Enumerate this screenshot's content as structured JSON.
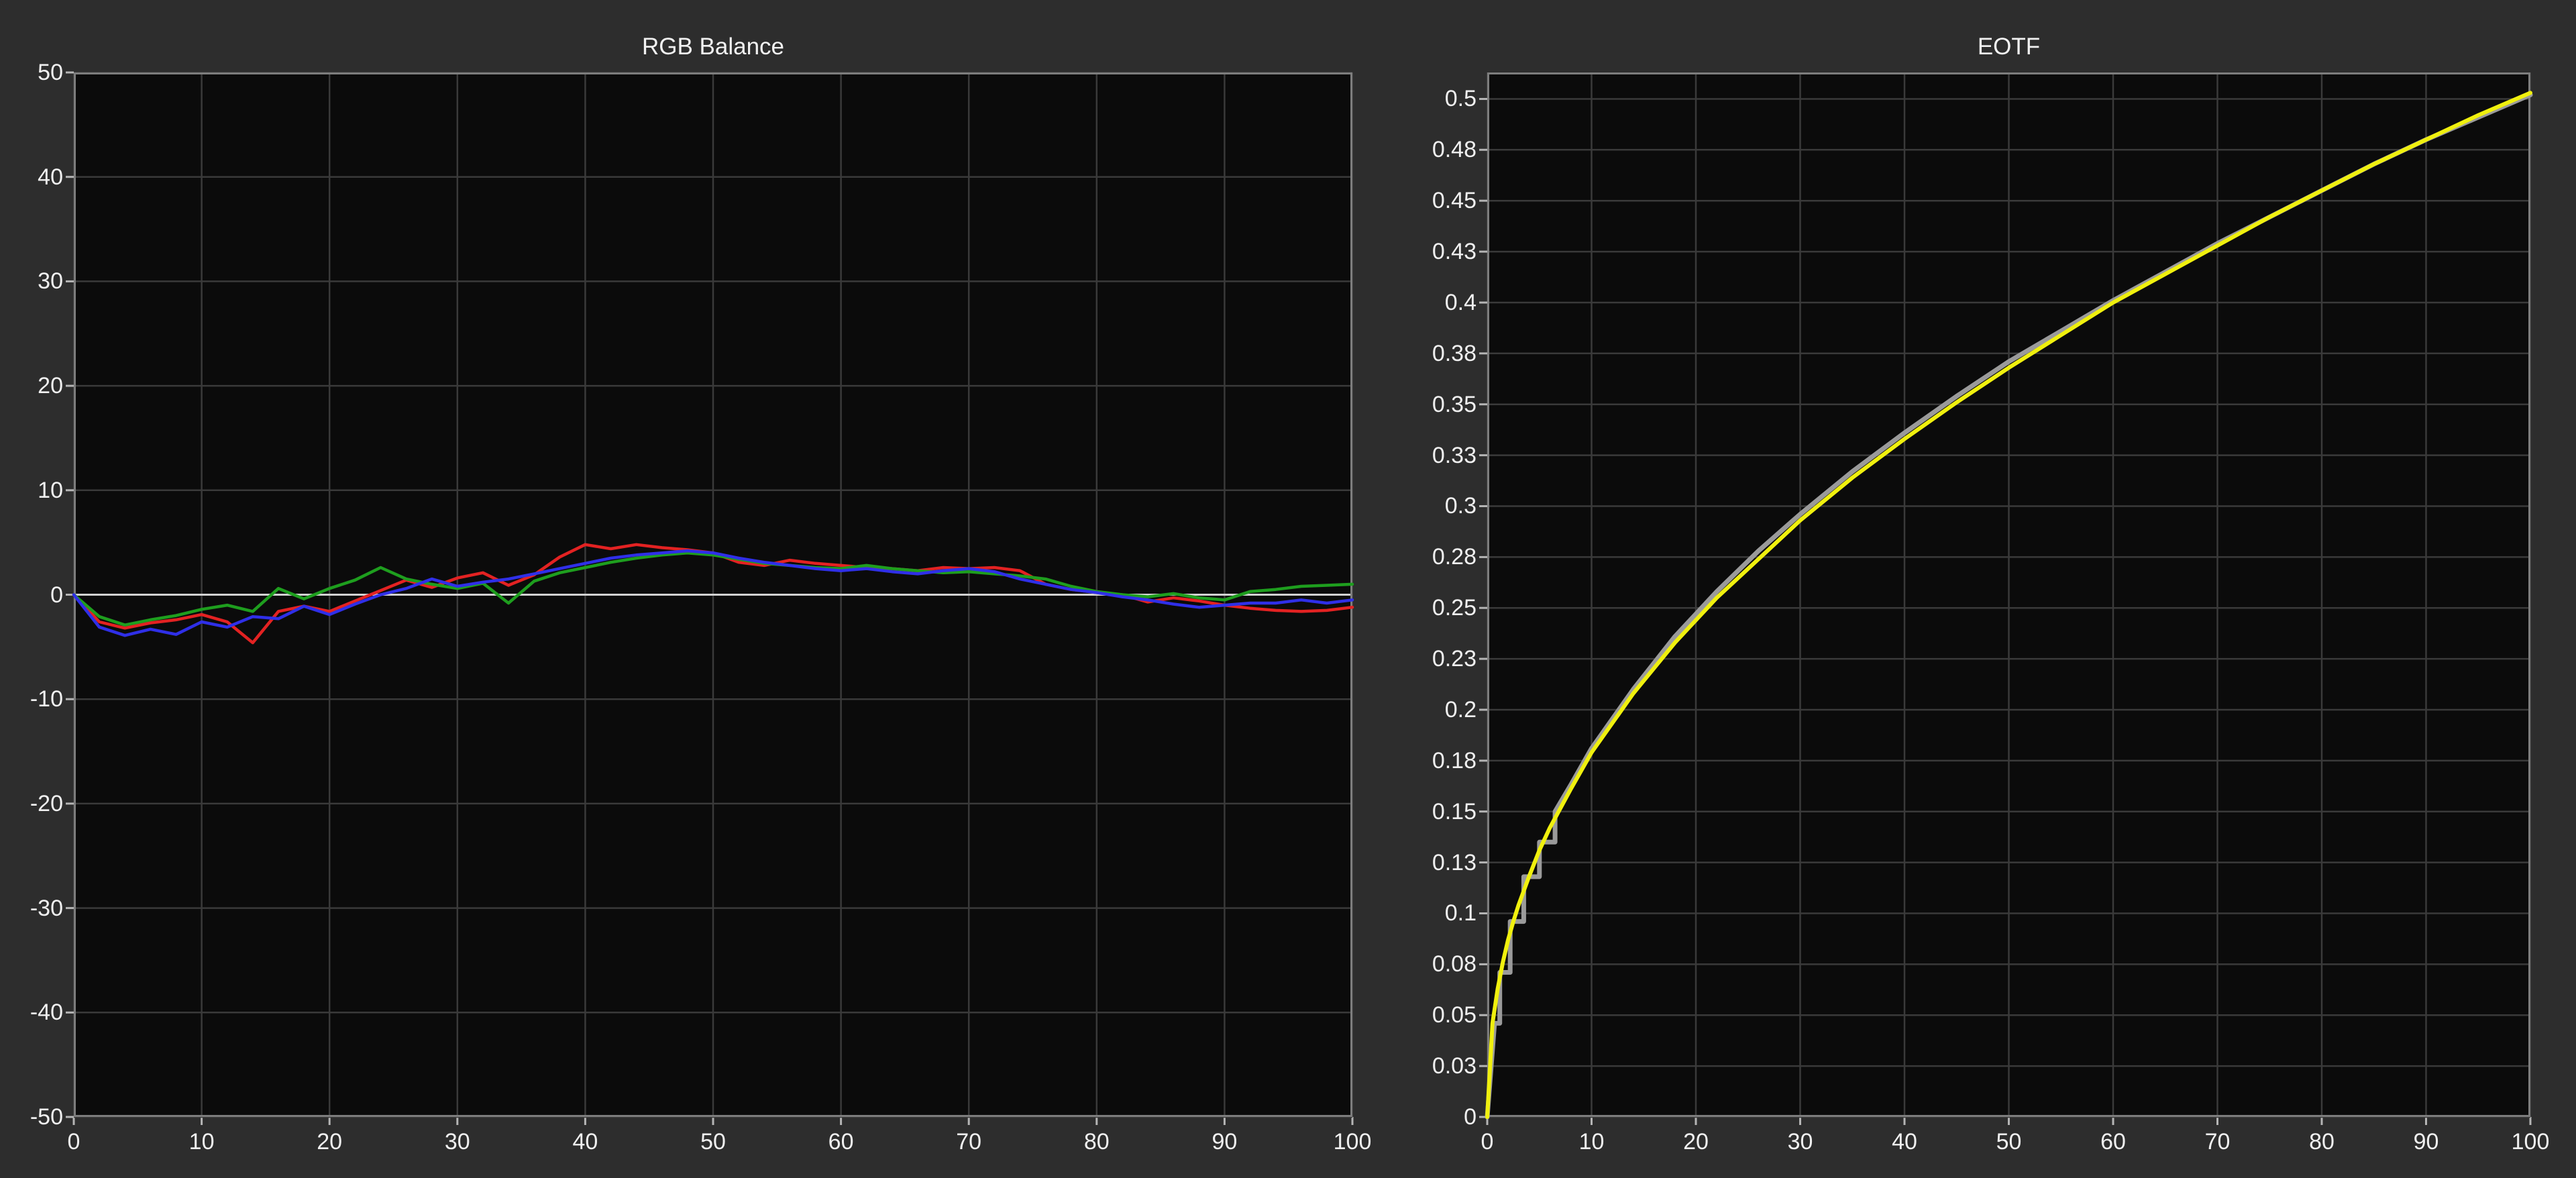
{
  "colors": {
    "page_background": "#2d2d2d",
    "plot_background": "#0b0b0b",
    "grid": "#3a3a3a",
    "border": "#7d7d7d",
    "zero_line": "#d2d2d2",
    "tick": "#b5b5b5",
    "text": "#f0f0f0",
    "red_series": "#e32222",
    "green_series": "#1e9e1e",
    "blue_series": "#2f2fe8",
    "yellow_series": "#f0f00e",
    "reference_series": "#9a9a9a"
  },
  "chart_data": [
    {
      "type": "line",
      "title": "RGB Balance",
      "xlabel": "",
      "ylabel": "",
      "xlim": [
        0,
        100
      ],
      "ylim": [
        -50,
        50
      ],
      "grid": true,
      "zero_line": true,
      "legend_position": "none",
      "x_tick_values": [
        0,
        10,
        20,
        30,
        40,
        50,
        60,
        70,
        80,
        90,
        100
      ],
      "x_tick_labels": [
        "0",
        "10",
        "20",
        "30",
        "40",
        "50",
        "60",
        "70",
        "80",
        "90",
        "100"
      ],
      "y_tick_values": [
        50,
        40,
        30,
        20,
        10,
        0,
        -10,
        -20,
        -30,
        -40,
        -50
      ],
      "y_tick_labels": [
        "50",
        "40",
        "30",
        "20",
        "10",
        "0",
        "-10",
        "-20",
        "-30",
        "-40",
        "-50"
      ],
      "x": [
        0,
        2,
        4,
        6,
        8,
        10,
        12,
        14,
        16,
        18,
        20,
        22,
        24,
        26,
        28,
        30,
        32,
        34,
        36,
        38,
        40,
        42,
        44,
        46,
        48,
        50,
        52,
        54,
        56,
        58,
        60,
        62,
        64,
        66,
        68,
        70,
        72,
        74,
        76,
        78,
        80,
        82,
        84,
        86,
        88,
        90,
        92,
        94,
        96,
        98,
        100
      ],
      "series": [
        {
          "name": "red-balance",
          "color": "#e32222",
          "width": 4.5,
          "values": [
            0,
            -2.6,
            -3.2,
            -2.7,
            -2.4,
            -1.9,
            -2.6,
            -4.6,
            -1.6,
            -1.1,
            -1.6,
            -0.6,
            0.4,
            1.4,
            0.7,
            1.6,
            2.1,
            0.9,
            1.9,
            3.6,
            4.8,
            4.4,
            4.8,
            4.5,
            4.3,
            4.0,
            3.1,
            2.8,
            3.3,
            3.0,
            2.8,
            2.6,
            2.5,
            2.3,
            2.6,
            2.5,
            2.6,
            2.3,
            1.0,
            0.5,
            0.2,
            0.0,
            -0.7,
            -0.3,
            -0.6,
            -1.0,
            -1.3,
            -1.5,
            -1.6,
            -1.5,
            -1.2
          ]
        },
        {
          "name": "green-balance",
          "color": "#1e9e1e",
          "width": 4.5,
          "values": [
            0,
            -2.1,
            -2.9,
            -2.4,
            -2.0,
            -1.4,
            -1.0,
            -1.6,
            0.6,
            -0.4,
            0.6,
            1.4,
            2.6,
            1.5,
            1.0,
            0.6,
            1.1,
            -0.8,
            1.3,
            2.1,
            2.6,
            3.1,
            3.5,
            3.8,
            4.0,
            3.8,
            3.4,
            3.0,
            2.8,
            2.6,
            2.5,
            2.8,
            2.5,
            2.3,
            2.1,
            2.2,
            2.0,
            1.8,
            1.5,
            0.8,
            0.3,
            0.0,
            -0.2,
            0.1,
            -0.3,
            -0.5,
            0.3,
            0.5,
            0.8,
            0.9,
            1.0
          ]
        },
        {
          "name": "blue-balance",
          "color": "#2f2fe8",
          "width": 4.5,
          "values": [
            0,
            -3.1,
            -3.9,
            -3.3,
            -3.8,
            -2.6,
            -3.1,
            -2.1,
            -2.3,
            -1.1,
            -1.9,
            -0.9,
            0.0,
            0.6,
            1.5,
            0.8,
            1.2,
            1.5,
            2.0,
            2.5,
            3.0,
            3.5,
            3.8,
            4.0,
            4.2,
            4.0,
            3.5,
            3.1,
            2.8,
            2.5,
            2.3,
            2.5,
            2.2,
            2.0,
            2.3,
            2.5,
            2.2,
            1.5,
            1.0,
            0.5,
            0.2,
            -0.2,
            -0.5,
            -0.9,
            -1.2,
            -1.0,
            -0.8,
            -0.8,
            -0.5,
            -0.8,
            -0.5
          ]
        }
      ]
    },
    {
      "type": "line",
      "title": "EOTF",
      "xlabel": "",
      "ylabel": "",
      "xlim": [
        0,
        100
      ],
      "ylim": [
        0,
        0.513
      ],
      "grid": true,
      "zero_line": false,
      "legend_position": "none",
      "x_tick_values": [
        0,
        10,
        20,
        30,
        40,
        50,
        60,
        70,
        80,
        90,
        100
      ],
      "x_tick_labels": [
        "0",
        "10",
        "20",
        "30",
        "40",
        "50",
        "60",
        "70",
        "80",
        "90",
        "100"
      ],
      "y_tick_values": [
        0,
        0.025,
        0.05,
        0.075,
        0.1,
        0.125,
        0.15,
        0.175,
        0.2,
        0.225,
        0.25,
        0.275,
        0.3,
        0.325,
        0.35,
        0.375,
        0.4,
        0.425,
        0.45,
        0.475,
        0.5
      ],
      "y_tick_labels": [
        "0",
        "0.03",
        "0.05",
        "0.08",
        "0.1",
        "0.13",
        "0.15",
        "0.18",
        "0.2",
        "0.23",
        "0.25",
        "0.28",
        "0.3",
        "0.33",
        "0.35",
        "0.38",
        "0.4",
        "0.43",
        "0.45",
        "0.48",
        "0.5"
      ],
      "series": [
        {
          "name": "reference-eotf",
          "color": "#9a9a9a",
          "width": 7,
          "x": [
            0,
            0.7,
            1.2,
            1.2,
            2.2,
            2.2,
            3.5,
            3.5,
            5,
            5,
            6.5,
            6.5,
            8,
            10,
            14,
            18,
            22,
            26,
            30,
            35,
            40,
            45,
            50,
            55,
            60,
            65,
            70,
            75,
            80,
            85,
            90,
            95,
            100
          ],
          "values": [
            0,
            0.046,
            0.046,
            0.071,
            0.071,
            0.096,
            0.096,
            0.118,
            0.118,
            0.135,
            0.135,
            0.15,
            0.163,
            0.181,
            0.21,
            0.236,
            0.258,
            0.278,
            0.296,
            0.317,
            0.336,
            0.354,
            0.371,
            0.386,
            0.401,
            0.415,
            0.429,
            0.442,
            0.455,
            0.468,
            0.48,
            0.491,
            0.502
          ]
        },
        {
          "name": "measured-eotf",
          "color": "#f0f00e",
          "width": 6,
          "x": [
            0,
            0.5,
            1,
            1.5,
            2,
            2.5,
            3,
            4,
            5,
            6,
            8,
            10,
            14,
            18,
            22,
            26,
            30,
            35,
            40,
            45,
            50,
            55,
            60,
            65,
            70,
            75,
            80,
            85,
            90,
            95,
            100
          ],
          "values": [
            0,
            0.046,
            0.063,
            0.076,
            0.087,
            0.096,
            0.104,
            0.118,
            0.131,
            0.142,
            0.161,
            0.179,
            0.208,
            0.233,
            0.255,
            0.274,
            0.293,
            0.314,
            0.333,
            0.351,
            0.368,
            0.384,
            0.4,
            0.414,
            0.428,
            0.442,
            0.455,
            0.468,
            0.48,
            0.492,
            0.503
          ]
        }
      ]
    }
  ]
}
